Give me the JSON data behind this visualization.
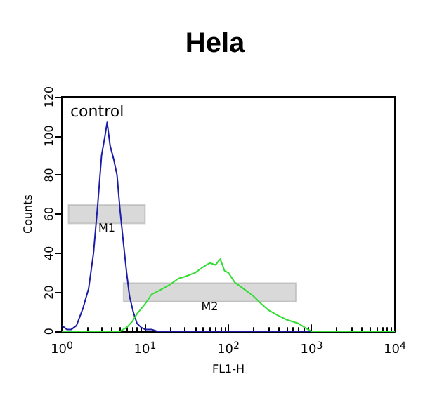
{
  "chart_data": {
    "type": "line",
    "title": "Hela",
    "xlabel": "FL1-H",
    "ylabel": "Counts",
    "log": "x",
    "series": [
      {
        "color": "#1c1ca8",
        "x": [
          1,
          1.15,
          1.3,
          1.5,
          1.8,
          2.1,
          2.4,
          2.7,
          3.0,
          3.3,
          3.5,
          3.8,
          4.2,
          4.6,
          5.0,
          5.5,
          6.0,
          6.5,
          7.2,
          8,
          9,
          10,
          12,
          14,
          100,
          1000,
          10000
        ],
        "values": [
          3,
          1,
          1,
          3,
          12,
          22,
          40,
          65,
          90,
          100,
          107,
          95,
          88,
          80,
          62,
          45,
          30,
          18,
          10,
          4,
          2,
          1,
          1,
          0,
          0,
          0,
          0
        ]
      },
      {
        "color": "#33dd33",
        "x": [
          1,
          5,
          6,
          7,
          8,
          10,
          12,
          15,
          20,
          25,
          30,
          40,
          50,
          60,
          70,
          80,
          90,
          100,
          120,
          150,
          200,
          250,
          300,
          400,
          500,
          700,
          900,
          1000,
          10000
        ],
        "values": [
          0,
          0,
          2,
          5,
          9,
          14,
          19,
          21,
          24,
          27,
          28,
          30,
          33,
          35,
          34,
          37,
          31,
          30,
          25,
          22,
          18,
          14,
          11,
          8,
          6,
          4,
          1,
          0,
          0
        ]
      }
    ],
    "xlim": [
      1,
      10000
    ],
    "xticks": [
      {
        "value": 1,
        "label": "10$^{0}$"
      },
      {
        "value": 10,
        "label": "10$^{1}$"
      },
      {
        "value": 100,
        "label": "10$^{2}$"
      },
      {
        "value": 1000,
        "label": "10$^{3}$"
      },
      {
        "value": 10000,
        "label": "10$^{4}$"
      }
    ],
    "ylim": [
      0,
      120
    ],
    "yticks": [
      0,
      20,
      40,
      60,
      80,
      100,
      120
    ],
    "bands": [
      {
        "axis": "x",
        "from": 1.2,
        "to": 10,
        "label": "M1",
        "color": "#000000"
      },
      {
        "axis": "x",
        "from": 5.5,
        "to": 650,
        "label": "M2",
        "color": "#000000"
      }
    ],
    "annotations": [
      "control"
    ],
    "grid": false,
    "marker": "none",
    "line_style": "solid"
  }
}
